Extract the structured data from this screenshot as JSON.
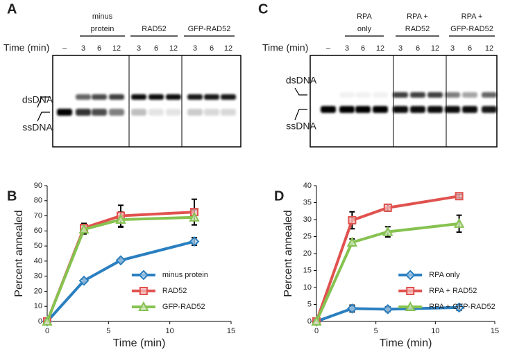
{
  "gels": [
    {
      "letter": "A",
      "time_label": "Time (min)",
      "lanes": [
        "–",
        "3",
        "6",
        "12",
        "3",
        "6",
        "12",
        "3",
        "6",
        "12"
      ],
      "groups": [
        {
          "lines": [
            "minus",
            "protein"
          ]
        },
        {
          "lines": [
            "RAD52"
          ]
        },
        {
          "lines": [
            "GFP-RAD52"
          ]
        }
      ],
      "band_labels": [
        "dsDNA",
        "ssDNA"
      ]
    },
    {
      "letter": "C",
      "time_label": "Time (min)",
      "lanes": [
        "–",
        "3",
        "6",
        "12",
        "3",
        "6",
        "12",
        "3",
        "6",
        "12"
      ],
      "groups": [
        {
          "lines": [
            "RPA",
            "only"
          ]
        },
        {
          "lines": [
            "RPA +",
            "RAD52"
          ]
        },
        {
          "lines": [
            "RPA +",
            "GFP-RAD52"
          ]
        }
      ],
      "band_labels": [
        "dsDNA",
        "ssDNA"
      ]
    }
  ],
  "chart_data": [
    {
      "type": "line",
      "panel": "B",
      "xlabel": "Time (min)",
      "ylabel": "Percent annealed",
      "x": [
        0,
        3,
        6,
        12
      ],
      "xlim": [
        0,
        15
      ],
      "xticks": [
        0,
        5,
        10,
        15
      ],
      "ylim": [
        0,
        90
      ],
      "yticks": [
        0,
        10,
        20,
        30,
        40,
        50,
        60,
        70,
        80,
        90
      ],
      "legend": "lower right",
      "series": [
        {
          "name": "minus protein",
          "color": "#2a7fc0",
          "marker": "diamond",
          "values": [
            0,
            27,
            40.5,
            53
          ],
          "errors": [
            0,
            1,
            1,
            2.5
          ]
        },
        {
          "name": "RAD52",
          "color": "#e0524f",
          "marker": "square",
          "values": [
            0,
            62,
            70,
            72.5
          ],
          "errors": [
            0,
            3,
            7,
            8.5
          ]
        },
        {
          "name": "GFP-RAD52",
          "color": "#86c250",
          "marker": "triangle",
          "values": [
            0,
            61,
            67.5,
            69
          ],
          "errors": [
            0,
            3,
            5,
            5
          ]
        }
      ]
    },
    {
      "type": "line",
      "panel": "D",
      "xlabel": "Time (min)",
      "ylabel": "Percent annealed",
      "x": [
        0,
        3,
        6,
        12
      ],
      "xlim": [
        0,
        15
      ],
      "xticks": [
        0,
        5,
        10,
        15
      ],
      "ylim": [
        0,
        40
      ],
      "yticks": [
        0,
        5,
        10,
        15,
        20,
        25,
        30,
        35,
        40
      ],
      "legend": "lower right",
      "series": [
        {
          "name": "RPA only",
          "color": "#2a7fc0",
          "marker": "diamond",
          "values": [
            0,
            3.8,
            3.6,
            4.1
          ],
          "errors": [
            0,
            1,
            0.7,
            0.8
          ]
        },
        {
          "name": "RPA + RAD52",
          "color": "#e0524f",
          "marker": "square",
          "values": [
            0,
            29.8,
            33.5,
            36.9
          ],
          "errors": [
            0,
            2.5,
            1,
            0.5
          ]
        },
        {
          "name": "RPA + GFP-RAD52",
          "color": "#86c250",
          "marker": "triangle",
          "values": [
            0,
            23.3,
            26.4,
            28.8
          ],
          "errors": [
            0,
            1,
            1.5,
            2.5
          ]
        }
      ]
    }
  ]
}
